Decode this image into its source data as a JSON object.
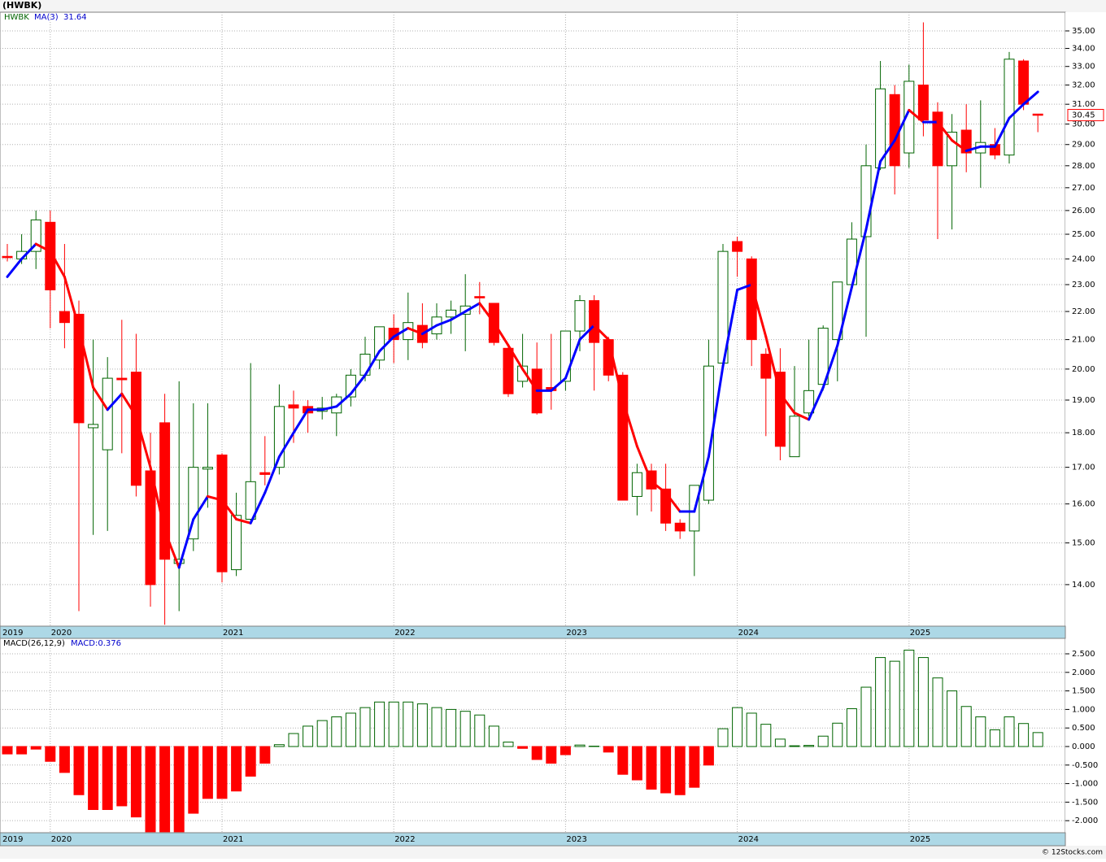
{
  "chart_data": [
    {
      "type": "candlestick",
      "title": "(HWBK)",
      "categories": [
        "2019",
        null,
        null,
        "2020",
        null,
        null,
        null,
        null,
        null,
        null,
        null,
        null,
        null,
        null,
        null,
        "2021",
        null,
        null,
        null,
        null,
        null,
        null,
        null,
        null,
        null,
        null,
        null,
        "2022",
        null,
        null,
        null,
        null,
        null,
        null,
        null,
        null,
        null,
        null,
        null,
        "2023",
        null,
        null,
        null,
        null,
        null,
        null,
        null,
        null,
        null,
        null,
        null,
        "2024",
        null,
        null,
        null,
        null,
        null,
        null,
        null,
        null,
        null,
        null,
        null,
        "2025",
        null,
        null,
        null,
        null,
        null,
        null,
        null,
        null,
        null
      ],
      "series": [
        {
          "name": "HWBK",
          "color": "#006400",
          "down_color": "#ff0000",
          "open": [
            24.1,
            24.0,
            24.3,
            25.5,
            22.0,
            21.9,
            18.15,
            17.5,
            19.7,
            19.9,
            16.9,
            18.3,
            14.5,
            15.1,
            16.95,
            17.35,
            14.35,
            15.6,
            16.85,
            17.0,
            18.85,
            18.8,
            18.65,
            18.6,
            19.1,
            19.8,
            20.3,
            21.4,
            21.0,
            21.5,
            21.2,
            21.8,
            21.9,
            22.55,
            22.3,
            20.7,
            19.6,
            20.0,
            19.4,
            19.6,
            21.3,
            22.4,
            21.0,
            19.8,
            16.2,
            16.9,
            16.4,
            15.5,
            15.3,
            16.1,
            20.2,
            24.7,
            24.0,
            20.5,
            19.9,
            17.3,
            18.6,
            19.5,
            21.0,
            23.0,
            24.9,
            27.9,
            31.5,
            28.6,
            32.0,
            30.6,
            28.0,
            29.7,
            28.6,
            29.0,
            28.5,
            33.3,
            30.5
          ],
          "high": [
            24.6,
            25.0,
            26.0,
            26.0,
            24.6,
            22.4,
            21.0,
            20.4,
            21.7,
            21.2,
            18.0,
            19.2,
            19.6,
            18.9,
            18.9,
            17.4,
            16.3,
            20.2,
            17.9,
            19.5,
            19.3,
            19.0,
            19.1,
            19.2,
            20.0,
            21.1,
            21.45,
            21.9,
            22.7,
            22.3,
            22.3,
            22.4,
            23.4,
            23.1,
            22.3,
            20.8,
            21.2,
            20.9,
            21.2,
            21.3,
            22.6,
            22.6,
            21.1,
            19.9,
            17.1,
            17.1,
            17.1,
            15.6,
            16.5,
            21.0,
            24.6,
            24.9,
            24.1,
            20.7,
            20.7,
            20.1,
            21.0,
            21.5,
            23.1,
            25.5,
            29.0,
            33.3,
            32.0,
            33.1,
            35.5,
            31.1,
            30.5,
            31.0,
            31.2,
            29.8,
            33.8,
            33.4,
            30.5
          ],
          "low": [
            23.9,
            23.8,
            23.6,
            21.4,
            20.7,
            13.4,
            15.2,
            15.3,
            17.4,
            16.2,
            13.5,
            13.1,
            13.4,
            14.8,
            15.9,
            14.05,
            14.2,
            15.5,
            16.5,
            16.8,
            17.7,
            18.0,
            18.4,
            17.9,
            18.8,
            19.6,
            20.0,
            20.2,
            20.3,
            20.7,
            21.0,
            21.2,
            20.6,
            21.9,
            20.8,
            19.1,
            19.4,
            18.55,
            18.7,
            19.3,
            20.6,
            19.3,
            19.6,
            16.1,
            15.7,
            15.8,
            15.3,
            15.1,
            14.2,
            16.0,
            20.2,
            23.3,
            20.1,
            17.9,
            17.2,
            17.3,
            18.5,
            19.3,
            19.6,
            23.0,
            21.1,
            27.8,
            26.7,
            27.9,
            29.4,
            24.8,
            25.2,
            27.7,
            27.0,
            28.3,
            28.1,
            30.7,
            29.6
          ],
          "close": [
            24.05,
            24.3,
            25.6,
            22.8,
            21.6,
            18.3,
            18.25,
            19.7,
            19.65,
            16.5,
            14.0,
            14.6,
            14.6,
            17.0,
            17.0,
            14.3,
            15.7,
            16.6,
            16.8,
            18.8,
            18.75,
            18.6,
            18.75,
            19.1,
            19.8,
            20.5,
            21.45,
            21.0,
            21.6,
            20.9,
            21.8,
            22.05,
            22.2,
            22.5,
            20.9,
            19.2,
            20.1,
            18.6,
            19.3,
            21.3,
            22.4,
            20.9,
            19.8,
            16.1,
            16.85,
            16.4,
            15.5,
            15.3,
            16.5,
            20.1,
            24.3,
            24.3,
            21.0,
            19.7,
            17.6,
            18.5,
            19.3,
            21.4,
            23.1,
            24.8,
            28.0,
            31.8,
            28.0,
            32.2,
            30.2,
            28.0,
            29.6,
            28.6,
            29.1,
            28.5,
            33.4,
            31.0,
            30.45
          ]
        },
        {
          "name": "MA(3)",
          "type": "line",
          "color": "#0000ff",
          "down_color": "#ff0000",
          "values": [
            23.3,
            24.0,
            24.6,
            24.3,
            23.3,
            21.4,
            19.4,
            18.7,
            19.2,
            18.5,
            17.0,
            15.3,
            14.4,
            15.6,
            16.2,
            16.1,
            15.6,
            15.5,
            16.3,
            17.3,
            18.0,
            18.7,
            18.7,
            18.8,
            19.2,
            19.8,
            20.6,
            21.1,
            21.4,
            21.2,
            21.5,
            21.7,
            22.0,
            22.3,
            21.6,
            20.8,
            20.0,
            19.3,
            19.3,
            19.7,
            21.0,
            21.5,
            21.0,
            19.0,
            17.6,
            16.6,
            16.3,
            15.8,
            15.8,
            17.3,
            20.1,
            22.8,
            23.0,
            21.1,
            19.2,
            18.6,
            18.4,
            19.4,
            20.8,
            22.9,
            25.2,
            28.2,
            29.2,
            30.7,
            30.1,
            30.1,
            29.2,
            28.7,
            28.9,
            28.9,
            30.3,
            31.0,
            31.64
          ]
        }
      ],
      "log_scale": true,
      "grid": true,
      "ylim": [
        13.07,
        36.1
      ],
      "yticks": [
        {
          "value": 14,
          "label": "14.00"
        },
        {
          "value": 15,
          "label": "15.00"
        },
        {
          "value": 16,
          "label": "16.00"
        },
        {
          "value": 17,
          "label": "17.00"
        },
        {
          "value": 18,
          "label": "18.00"
        },
        {
          "value": 19,
          "label": "19.00"
        },
        {
          "value": 20,
          "label": "20.00"
        },
        {
          "value": 21,
          "label": "21.00"
        },
        {
          "value": 22,
          "label": "22.00"
        },
        {
          "value": 23,
          "label": "23.00"
        },
        {
          "value": 24,
          "label": "24.00"
        },
        {
          "value": 25,
          "label": "25.00"
        },
        {
          "value": 26,
          "label": "26.00"
        },
        {
          "value": 27,
          "label": "27.00"
        },
        {
          "value": 28,
          "label": "28.00"
        },
        {
          "value": 29,
          "label": "29.00"
        },
        {
          "value": 30,
          "label": "30.00"
        },
        {
          "value": 31,
          "label": "31.00"
        },
        {
          "value": 32,
          "label": "32.00"
        },
        {
          "value": 33,
          "label": "33.00"
        },
        {
          "value": 34,
          "label": "34.00"
        },
        {
          "value": 35,
          "label": "35.00"
        }
      ]
    },
    {
      "type": "bar",
      "title": "MACD(26,12,9)",
      "series": [
        {
          "name": "MACD:0.376",
          "color": "#006400",
          "down_color": "#ff0000",
          "values": [
            -0.2,
            -0.2,
            -0.07,
            -0.4,
            -0.7,
            -1.3,
            -1.7,
            -1.7,
            -1.6,
            -1.9,
            -2.3,
            -2.3,
            -2.3,
            -1.8,
            -1.4,
            -1.4,
            -1.2,
            -0.8,
            -0.45,
            0.05,
            0.35,
            0.55,
            0.7,
            0.8,
            0.9,
            1.05,
            1.2,
            1.2,
            1.2,
            1.15,
            1.05,
            1.0,
            0.95,
            0.85,
            0.55,
            0.12,
            -0.05,
            -0.35,
            -0.45,
            -0.22,
            0.04,
            0.01,
            -0.15,
            -0.75,
            -0.9,
            -1.15,
            -1.25,
            -1.3,
            -1.1,
            -0.5,
            0.48,
            1.05,
            0.9,
            0.6,
            0.2,
            0.02,
            0.03,
            0.28,
            0.63,
            1.02,
            1.6,
            2.4,
            2.3,
            2.6,
            2.4,
            1.85,
            1.5,
            1.08,
            0.8,
            0.45,
            0.8,
            0.62,
            0.376
          ]
        }
      ],
      "grid": true,
      "ylim": [
        -2.325,
        2.917
      ],
      "yticks": [
        {
          "value": -2,
          "label": "-2.000"
        },
        {
          "value": -1.5,
          "label": "-1.500"
        },
        {
          "value": -1,
          "label": "-1.000"
        },
        {
          "value": -0.5,
          "label": "-0.500"
        },
        {
          "value": 0,
          "label": "0.000"
        },
        {
          "value": 0.5,
          "label": "0.500"
        },
        {
          "value": 1,
          "label": "1.000"
        },
        {
          "value": 1.5,
          "label": "1.500"
        },
        {
          "value": 2,
          "label": "2.000"
        },
        {
          "value": 2.5,
          "label": "2.500"
        }
      ]
    }
  ],
  "source": "© 12Stocks.com"
}
